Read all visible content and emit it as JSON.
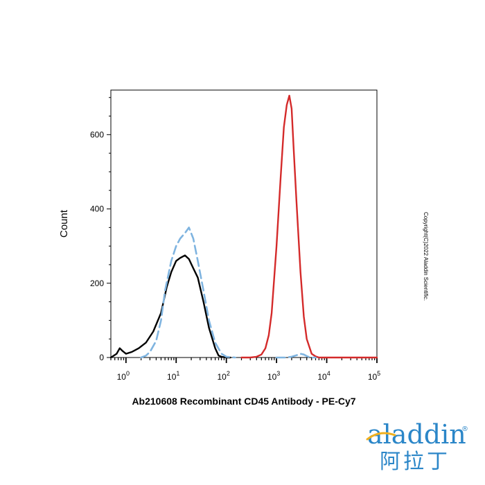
{
  "chart_data": {
    "type": "line",
    "title": "Ab210608 Recombinant CD45 Antibody - PE-Cy7",
    "xlabel": "",
    "ylabel": "Count",
    "xscale": "log",
    "xlim": [
      0.5,
      100000
    ],
    "ylim": [
      0,
      720
    ],
    "x_ticks": [
      1,
      10,
      100,
      1000,
      10000,
      100000
    ],
    "x_tick_labels": [
      {
        "base": "10",
        "exp": "0"
      },
      {
        "base": "10",
        "exp": "1"
      },
      {
        "base": "10",
        "exp": "2"
      },
      {
        "base": "10",
        "exp": "3"
      },
      {
        "base": "10",
        "exp": "4"
      },
      {
        "base": "10",
        "exp": "5"
      }
    ],
    "y_ticks": [
      0,
      200,
      400,
      600
    ],
    "grid": false,
    "legend": false,
    "series": [
      {
        "color": "#000000",
        "style": "solid",
        "x": [
          0.5,
          0.65,
          0.75,
          0.85,
          1.0,
          1.3,
          1.8,
          2.5,
          3.5,
          5,
          6.5,
          8,
          10,
          12,
          15,
          18,
          22,
          27,
          35,
          45,
          60,
          70,
          80,
          100,
          120
        ],
        "y": [
          0,
          10,
          25,
          18,
          10,
          15,
          25,
          40,
          70,
          120,
          190,
          230,
          260,
          268,
          275,
          265,
          240,
          215,
          150,
          80,
          25,
          5,
          2,
          0,
          0
        ]
      },
      {
        "color": "#7fb4e0",
        "style": "dashed",
        "x": [
          2,
          2.5,
          3,
          4,
          5,
          6,
          8,
          10,
          12,
          15,
          18,
          22,
          27,
          35,
          45,
          60,
          80,
          100,
          150
        ],
        "y": [
          0,
          5,
          15,
          45,
          100,
          180,
          260,
          300,
          320,
          335,
          350,
          320,
          260,
          180,
          100,
          40,
          10,
          2,
          0
        ]
      },
      {
        "color": "#d42a2a",
        "style": "solid",
        "x": [
          200,
          300,
          400,
          500,
          600,
          700,
          800,
          1000,
          1200,
          1400,
          1600,
          1800,
          2000,
          2200,
          2500,
          3000,
          3500,
          4000,
          5000,
          6000,
          7000,
          8000,
          10000,
          50000,
          100000
        ],
        "y": [
          0,
          0,
          2,
          8,
          25,
          60,
          120,
          300,
          480,
          620,
          680,
          705,
          670,
          560,
          420,
          230,
          110,
          50,
          10,
          3,
          0,
          0,
          0,
          0,
          0
        ]
      },
      {
        "color": "#7fb4e0",
        "style": "dashed",
        "x": [
          1000,
          1500,
          2000,
          2500,
          3000,
          3500,
          4000,
          4500,
          5000,
          6000
        ],
        "y": [
          0,
          0,
          2,
          6,
          10,
          8,
          4,
          1,
          0,
          0
        ]
      }
    ]
  },
  "copyright_text": "Copyright(C)2022 Aladdin Scientific.",
  "logo": {
    "latin": "aladdin",
    "cjk": "阿拉丁",
    "registered": "®"
  }
}
